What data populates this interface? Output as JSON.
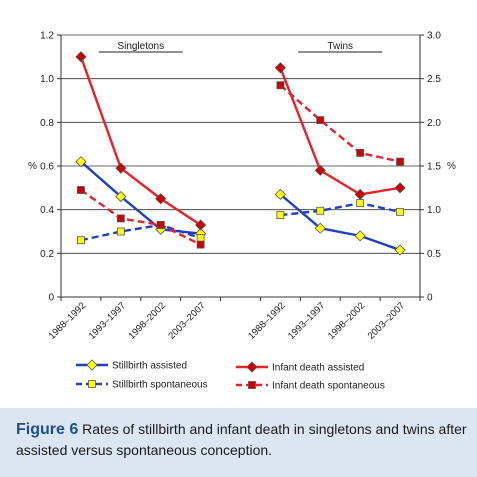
{
  "chart_data": {
    "type": "line",
    "panels": [
      "Singletons",
      "Twins"
    ],
    "categories": [
      "1988–1992",
      "1993–1997",
      "1998–2002",
      "2003–2007"
    ],
    "ylabel_left": "%",
    "ylabel_right": "%",
    "ylim_left": [
      0,
      1.2
    ],
    "ylim_right": [
      0,
      3.0
    ],
    "yticks_left": [
      "0",
      "0.2",
      "0.4",
      "0.6",
      "0.8",
      "1.0",
      "1.2"
    ],
    "yticks_right": [
      "0",
      "0.5",
      "1.0",
      "1.5",
      "2.0",
      "2.5",
      "3.0"
    ],
    "series": [
      {
        "name": "Stillbirth assisted",
        "color": "#1f3fbf",
        "marker": "diamond",
        "marker_fill": "#ffff00",
        "dash": "solid",
        "singletons": [
          0.62,
          0.46,
          0.31,
          0.29
        ],
        "twins": [
          0.47,
          0.315,
          0.28,
          0.215
        ]
      },
      {
        "name": "Stillbirth spontaneous",
        "color": "#1f3fbf",
        "marker": "square",
        "marker_fill": "#ffff00",
        "dash": "dashed",
        "singletons": [
          0.26,
          0.3,
          0.33,
          0.27
        ],
        "twins": [
          0.375,
          0.395,
          0.43,
          0.39
        ]
      },
      {
        "name": "Infant death assisted",
        "color": "#e8202a",
        "marker": "diamond",
        "marker_fill": "#cc0000",
        "dash": "solid",
        "singletons": [
          1.1,
          0.59,
          0.45,
          0.33
        ],
        "twins": [
          1.05,
          0.58,
          0.47,
          0.5
        ]
      },
      {
        "name": "Infant death spontaneous",
        "color": "#e8202a",
        "marker": "square",
        "marker_fill": "#cc0000",
        "dash": "dashed",
        "singletons": [
          0.49,
          0.36,
          0.33,
          0.24
        ],
        "twins": [
          0.97,
          0.81,
          0.66,
          0.62
        ]
      }
    ],
    "grid": true,
    "legend_position": "bottom"
  },
  "caption": {
    "label": "Figure 6",
    "text": "Rates of stillbirth and infant death in singletons and twins after assisted versus spontaneous conception."
  }
}
